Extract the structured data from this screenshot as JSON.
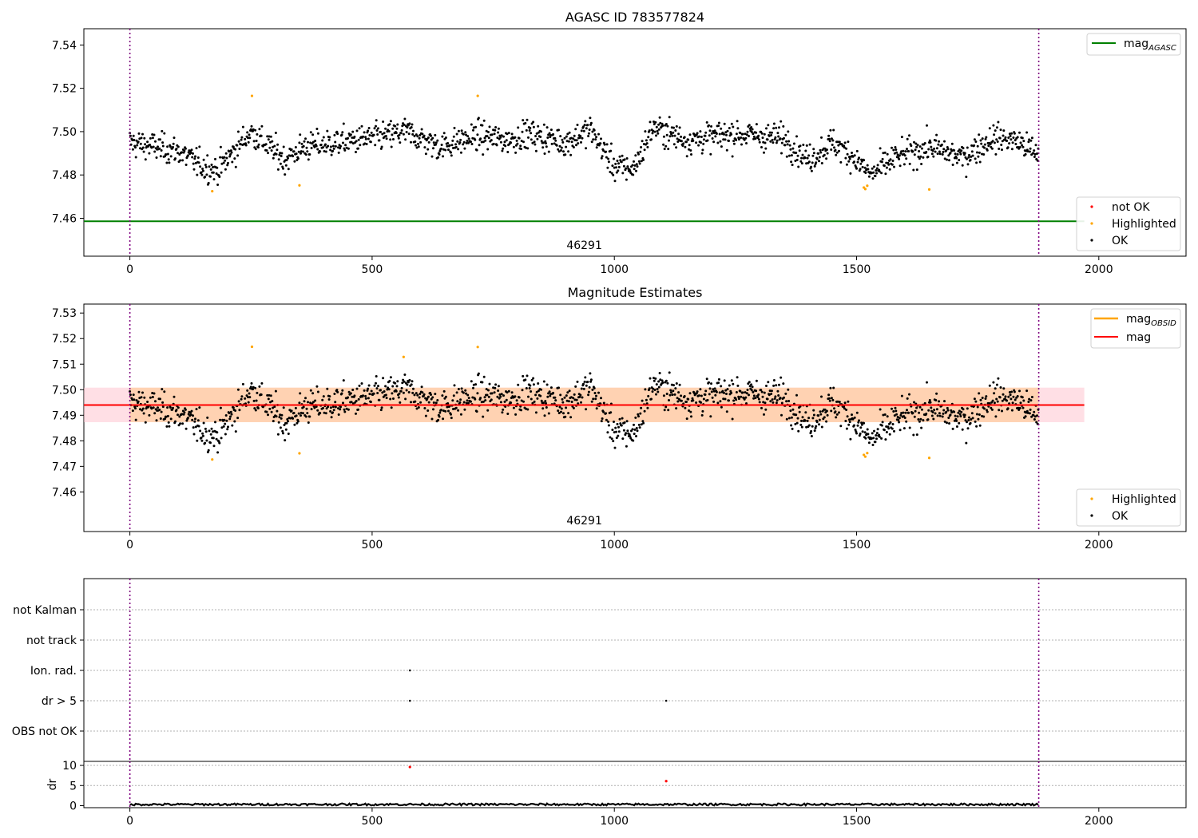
{
  "chart_data": [
    {
      "id": "top",
      "type": "scatter",
      "title": "AGASC ID 783577824",
      "xlim": [
        -95,
        2180
      ],
      "ylim": [
        7.4425,
        7.5475
      ],
      "xticks": [
        0,
        500,
        1000,
        1500,
        2000
      ],
      "xticklabels": [
        "0",
        "500",
        "1000",
        "1500",
        "2000"
      ],
      "yticks": [
        7.46,
        7.48,
        7.5,
        7.52,
        7.54
      ],
      "yticklabels": [
        "7.46",
        "7.48",
        "7.50",
        "7.52",
        "7.54"
      ],
      "mag_agasc": 7.4586,
      "agasc_line_x": [
        -95,
        1970
      ],
      "obs_boundaries": [
        0,
        1876
      ],
      "obsid_label": "46291",
      "obsid_label_x": 938,
      "ok_trend": [
        [
          0,
          7.495
        ],
        [
          100,
          7.491
        ],
        [
          150,
          7.484
        ],
        [
          180,
          7.482
        ],
        [
          250,
          7.5
        ],
        [
          320,
          7.487
        ],
        [
          360,
          7.493
        ],
        [
          500,
          7.497
        ],
        [
          570,
          7.5
        ],
        [
          640,
          7.493
        ],
        [
          720,
          7.498
        ],
        [
          780,
          7.496
        ],
        [
          820,
          7.499
        ],
        [
          900,
          7.495
        ],
        [
          950,
          7.501
        ],
        [
          1000,
          7.484
        ],
        [
          1040,
          7.483
        ],
        [
          1080,
          7.502
        ],
        [
          1150,
          7.496
        ],
        [
          1250,
          7.499
        ],
        [
          1350,
          7.497
        ],
        [
          1400,
          7.487
        ],
        [
          1450,
          7.495
        ],
        [
          1490,
          7.489
        ],
        [
          1530,
          7.48
        ],
        [
          1580,
          7.488
        ],
        [
          1650,
          7.493
        ],
        [
          1720,
          7.488
        ],
        [
          1780,
          7.497
        ],
        [
          1830,
          7.496
        ],
        [
          1876,
          7.489
        ]
      ],
      "highlighted": [
        [
          170,
          7.4725
        ],
        [
          252,
          7.5165
        ],
        [
          350,
          7.4752
        ],
        [
          718,
          7.5165
        ],
        [
          1515,
          7.4742
        ],
        [
          1518,
          7.4735
        ],
        [
          1522,
          7.475
        ],
        [
          1650,
          7.4733
        ]
      ],
      "legend_line": {
        "label": "mag",
        "subscript": "AGASC",
        "color": "#008000"
      },
      "legend_markers": [
        {
          "label": "not OK",
          "color": "#ff0000"
        },
        {
          "label": "Highlighted",
          "color": "#ffa500"
        },
        {
          "label": "OK",
          "color": "#000000"
        }
      ]
    },
    {
      "id": "middle",
      "type": "scatter",
      "title": "Magnitude Estimates",
      "xlim": [
        -95,
        2180
      ],
      "ylim": [
        7.4445,
        7.5335
      ],
      "xticks": [
        0,
        500,
        1000,
        1500,
        2000
      ],
      "xticklabels": [
        "0",
        "500",
        "1000",
        "1500",
        "2000"
      ],
      "yticks": [
        7.46,
        7.47,
        7.48,
        7.49,
        7.5,
        7.51,
        7.52,
        7.53
      ],
      "yticklabels": [
        "7.46",
        "7.47",
        "7.48",
        "7.49",
        "7.50",
        "7.51",
        "7.52",
        "7.53"
      ],
      "mag": 7.494,
      "mag_band": [
        7.4873,
        7.5008
      ],
      "band_x": [
        -95,
        1970
      ],
      "obs_boundaries": [
        0,
        1876
      ],
      "obsid_label": "46291",
      "obsid_label_x": 938,
      "highlighted": [
        [
          170,
          7.4727
        ],
        [
          252,
          7.5168
        ],
        [
          350,
          7.4751
        ],
        [
          565,
          7.5128
        ],
        [
          718,
          7.5167
        ],
        [
          1515,
          7.4745
        ],
        [
          1518,
          7.4738
        ],
        [
          1522,
          7.4752
        ],
        [
          1650,
          7.4733
        ]
      ],
      "legend_lines": [
        {
          "label": "mag",
          "subscript": "OBSID",
          "color": "#ffa500"
        },
        {
          "label": "mag",
          "subscript": "",
          "color": "#ff0000"
        }
      ],
      "legend_markers": [
        {
          "label": "Highlighted",
          "color": "#ffa500"
        },
        {
          "label": "OK",
          "color": "#000000"
        }
      ]
    },
    {
      "id": "flags",
      "type": "scatter",
      "xlim": [
        -95,
        2180
      ],
      "categories": [
        "not Kalman",
        "not track",
        "Ion. rad.",
        "dr > 5",
        "OBS not OK"
      ],
      "obs_boundaries": [
        0,
        1876
      ],
      "points": [
        {
          "category": "Ion. rad.",
          "x": 578
        },
        {
          "category": "dr > 5",
          "x": 578
        },
        {
          "category": "dr > 5",
          "x": 1107
        }
      ]
    },
    {
      "id": "dr",
      "type": "line",
      "ylabel": "dr",
      "xlim": [
        -95,
        2180
      ],
      "ylim": [
        -0.5,
        11.0
      ],
      "xticks": [
        0,
        500,
        1000,
        1500,
        2000
      ],
      "xticklabels": [
        "0",
        "500",
        "1000",
        "1500",
        "2000"
      ],
      "yticks": [
        0,
        5,
        10
      ],
      "yticklabels": [
        "0",
        "5",
        "10"
      ],
      "obs_boundaries": [
        0,
        1876
      ],
      "baseline": 0.3,
      "outliers": [
        [
          578,
          9.6
        ],
        [
          1107,
          6.1
        ]
      ]
    }
  ]
}
